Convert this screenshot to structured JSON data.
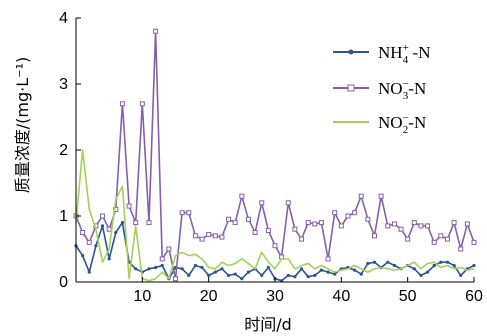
{
  "chart_data": {
    "type": "line",
    "title": "",
    "xlabel": "时间/d",
    "ylabel": "质量浓度/(mg·L⁻¹)",
    "xlim": [
      0,
      60
    ],
    "ylim": [
      0,
      4
    ],
    "x_ticks": [
      "10",
      "20",
      "30",
      "40",
      "50",
      "60"
    ],
    "y_ticks": [
      "0",
      "1",
      "2",
      "3",
      "4"
    ],
    "grid": false,
    "legend_position": "top-right",
    "series": [
      {
        "key": "nh4",
        "legend": {
          "base": "NH",
          "sub": "4",
          "sup": "+",
          "suffix": " -N"
        },
        "color": "#2b5591",
        "marker": "dot",
        "x": [
          0,
          1,
          2,
          3,
          4,
          5,
          6,
          7,
          8,
          9,
          10,
          11,
          12,
          13,
          14,
          15,
          16,
          17,
          18,
          19,
          20,
          21,
          22,
          23,
          24,
          25,
          26,
          27,
          28,
          29,
          30,
          31,
          32,
          33,
          34,
          35,
          36,
          37,
          38,
          39,
          40,
          41,
          42,
          43,
          44,
          45,
          46,
          47,
          48,
          49,
          50,
          51,
          52,
          53,
          54,
          55,
          56,
          57,
          58,
          59,
          60
        ],
        "y": [
          0.55,
          0.4,
          0.15,
          0.55,
          0.85,
          0.35,
          0.75,
          0.9,
          0.3,
          0.2,
          0.15,
          0.2,
          0.22,
          0.25,
          0.05,
          0.22,
          0.2,
          0.1,
          0.25,
          0.22,
          0.1,
          0.15,
          0.2,
          0.1,
          0.12,
          0.05,
          0.15,
          0.2,
          0.1,
          0.22,
          0.05,
          0.02,
          0.1,
          0.08,
          0.2,
          0.08,
          0.1,
          0.18,
          0.15,
          0.12,
          0.2,
          0.22,
          0.18,
          0.12,
          0.28,
          0.3,
          0.22,
          0.3,
          0.25,
          0.2,
          0.25,
          0.2,
          0.1,
          0.15,
          0.25,
          0.3,
          0.3,
          0.25,
          0.1,
          0.2,
          0.25
        ]
      },
      {
        "key": "no3",
        "legend": {
          "base": "NO",
          "sub": "3",
          "sup": "−",
          "suffix": "-N"
        },
        "color": "#8561a8",
        "marker": "square",
        "x": [
          0,
          1,
          2,
          3,
          4,
          5,
          6,
          7,
          8,
          9,
          10,
          11,
          12,
          13,
          14,
          15,
          16,
          17,
          18,
          19,
          20,
          21,
          22,
          23,
          24,
          25,
          26,
          27,
          28,
          29,
          30,
          31,
          32,
          33,
          34,
          35,
          36,
          37,
          38,
          39,
          40,
          41,
          42,
          43,
          44,
          45,
          46,
          47,
          48,
          49,
          50,
          51,
          52,
          53,
          54,
          55,
          56,
          57,
          58,
          59,
          60
        ],
        "y": [
          1.0,
          0.75,
          0.6,
          0.85,
          1.0,
          0.8,
          1.1,
          2.7,
          1.15,
          0.9,
          2.7,
          0.9,
          3.8,
          0.35,
          0.5,
          0.05,
          1.05,
          1.05,
          0.7,
          0.65,
          0.72,
          0.7,
          0.68,
          0.95,
          0.9,
          1.3,
          0.95,
          0.75,
          1.2,
          0.78,
          0.55,
          0.38,
          1.2,
          0.8,
          0.65,
          0.9,
          0.88,
          0.9,
          0.35,
          1.05,
          0.85,
          1.0,
          1.05,
          1.3,
          0.95,
          0.7,
          1.3,
          0.85,
          0.88,
          0.8,
          0.65,
          0.9,
          0.85,
          0.85,
          0.6,
          0.7,
          0.65,
          0.9,
          0.5,
          0.88,
          0.6
        ]
      },
      {
        "key": "no2",
        "legend": {
          "base": "NO",
          "sub": "2",
          "sup": "−",
          "suffix": "-N"
        },
        "color": "#a5cf5b",
        "marker": "none",
        "x": [
          0,
          1,
          2,
          3,
          4,
          5,
          6,
          7,
          8,
          9,
          10,
          11,
          12,
          13,
          14,
          15,
          16,
          17,
          18,
          19,
          20,
          21,
          22,
          23,
          24,
          25,
          26,
          27,
          28,
          29,
          30,
          31,
          32,
          33,
          34,
          35,
          36,
          37,
          38,
          39,
          40,
          41,
          42,
          43,
          44,
          45,
          46,
          47,
          48,
          49,
          50,
          51,
          52,
          53,
          54,
          55,
          56,
          57,
          58,
          59,
          60
        ],
        "y": [
          0.9,
          2.0,
          1.1,
          0.8,
          0.3,
          0.5,
          1.25,
          1.45,
          0.05,
          0.85,
          0.05,
          0.02,
          0.05,
          0.15,
          0.05,
          0.4,
          0.45,
          0.4,
          0.42,
          0.35,
          0.22,
          0.2,
          0.3,
          0.25,
          0.28,
          0.35,
          0.28,
          0.2,
          0.45,
          0.3,
          0.2,
          0.35,
          0.35,
          0.2,
          0.25,
          0.28,
          0.2,
          0.25,
          0.2,
          0.15,
          0.18,
          0.2,
          0.25,
          0.2,
          0.15,
          0.2,
          0.22,
          0.2,
          0.18,
          0.2,
          0.25,
          0.3,
          0.2,
          0.28,
          0.3,
          0.22,
          0.25,
          0.2,
          0.22,
          0.18,
          0.2
        ]
      }
    ]
  }
}
